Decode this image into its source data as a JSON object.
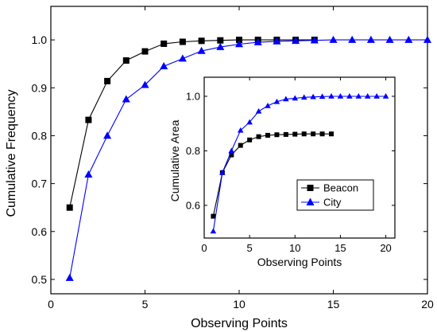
{
  "chart_data": [
    {
      "type": "line",
      "xlabel": "Observing Points",
      "ylabel": "Cumulative Frequency",
      "xlim": [
        0,
        20
      ],
      "ylim": [
        0.47,
        1.07
      ],
      "xticks": [
        "0",
        "5",
        "10",
        "15",
        "20"
      ],
      "yticks": [
        "0.5",
        "0.6",
        "0.7",
        "0.8",
        "0.9",
        "1.0"
      ],
      "series": [
        {
          "name": "Beacon",
          "marker": "square",
          "color": "#000000",
          "x": [
            1,
            2,
            3,
            4,
            5,
            6,
            7,
            8,
            9,
            10,
            11,
            12,
            13,
            14
          ],
          "y": [
            0.65,
            0.833,
            0.914,
            0.957,
            0.976,
            0.992,
            0.996,
            0.998,
            0.999,
            1.0,
            1.0,
            1.0,
            1.0,
            1.0
          ]
        },
        {
          "name": "City",
          "marker": "triangle",
          "color": "#0000ff",
          "x": [
            1,
            2,
            3,
            4,
            5,
            6,
            7,
            8,
            9,
            10,
            11,
            12,
            13,
            14,
            15,
            16,
            17,
            18,
            19,
            20
          ],
          "y": [
            0.503,
            0.719,
            0.8,
            0.876,
            0.906,
            0.945,
            0.961,
            0.977,
            0.985,
            0.991,
            0.995,
            0.997,
            0.998,
            0.999,
            1.0,
            1.0,
            1.0,
            1.0,
            1.0,
            1.0
          ]
        }
      ]
    },
    {
      "type": "line",
      "xlabel": "Observing Points",
      "ylabel": "Cumulative Area",
      "xlim": [
        0,
        21
      ],
      "ylim": [
        0.48,
        1.07
      ],
      "xticks": [
        "0",
        "5",
        "10",
        "15",
        "20"
      ],
      "yticks": [
        "0.6",
        "0.8",
        "1.0"
      ],
      "legend": "center-right",
      "series": [
        {
          "name": "Beacon",
          "marker": "square",
          "color": "#000000",
          "x": [
            1,
            2,
            3,
            4,
            5,
            6,
            7,
            8,
            9,
            10,
            11,
            12,
            13,
            14
          ],
          "y": [
            0.56,
            0.72,
            0.785,
            0.82,
            0.84,
            0.852,
            0.857,
            0.859,
            0.86,
            0.861,
            0.862,
            0.862,
            0.862,
            0.862
          ]
        },
        {
          "name": "City",
          "marker": "triangle",
          "color": "#0000ff",
          "x": [
            1,
            2,
            3,
            4,
            5,
            6,
            7,
            8,
            9,
            10,
            11,
            12,
            13,
            14,
            15,
            16,
            17,
            18,
            19,
            20
          ],
          "y": [
            0.505,
            0.72,
            0.8,
            0.875,
            0.905,
            0.945,
            0.965,
            0.98,
            0.99,
            0.993,
            0.996,
            0.998,
            0.999,
            1.0,
            1.0,
            1.0,
            1.0,
            1.0,
            1.0,
            1.0
          ]
        }
      ]
    }
  ]
}
